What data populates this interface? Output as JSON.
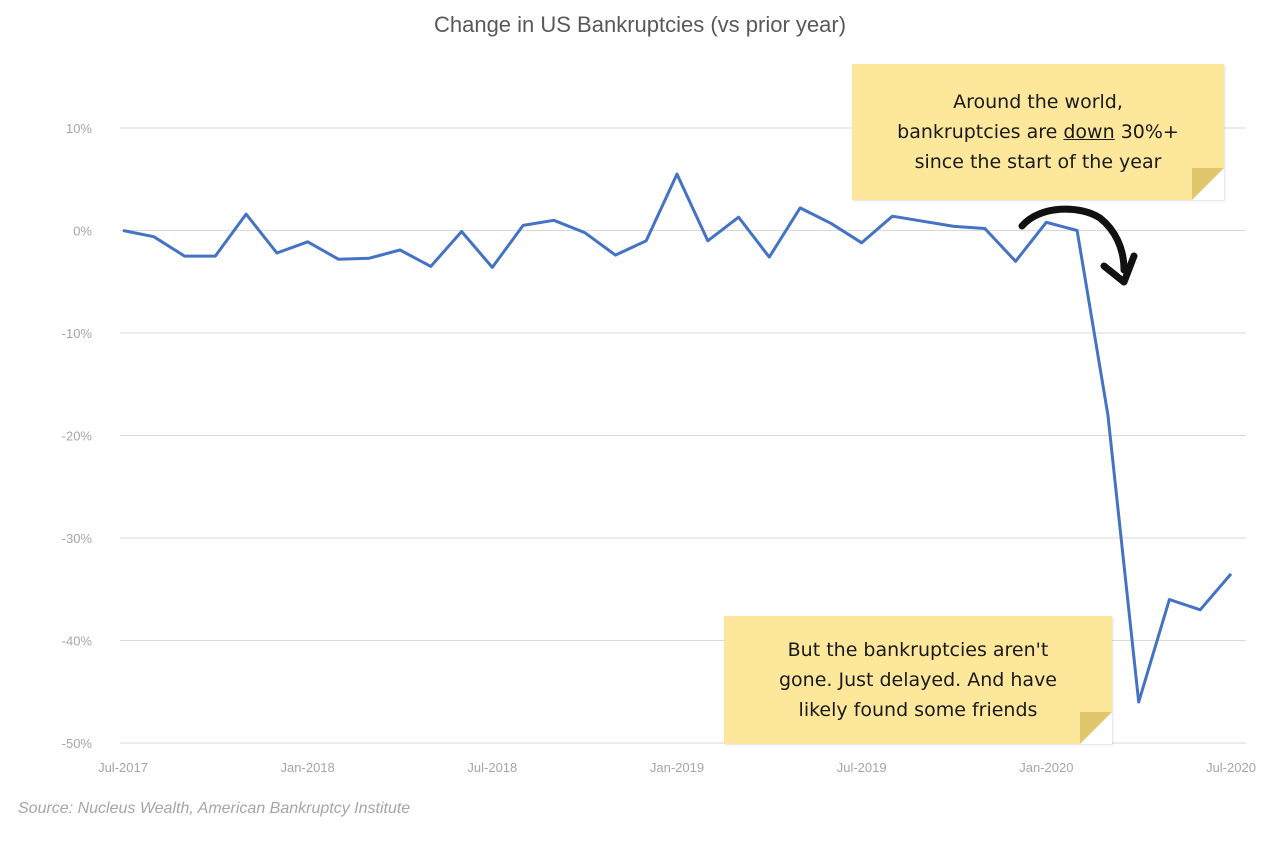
{
  "chart_data": {
    "type": "line",
    "title": "Change in US Bankruptcies (vs prior year)",
    "xlabel": "",
    "ylabel": "",
    "ylim": [
      -50,
      10
    ],
    "y_ticks": [
      "10%",
      "0%",
      "-10%",
      "-20%",
      "-30%",
      "-40%",
      "-50%"
    ],
    "x_ticks": [
      "Jul-2017",
      "Jan-2018",
      "Jul-2018",
      "Jan-2019",
      "Jul-2019",
      "Jan-2020",
      "Jul-2020"
    ],
    "grid": true,
    "line_color": "#4472c4",
    "x": [
      "Jul-2017",
      "Aug-2017",
      "Sep-2017",
      "Oct-2017",
      "Nov-2017",
      "Dec-2017",
      "Jan-2018",
      "Feb-2018",
      "Mar-2018",
      "Apr-2018",
      "May-2018",
      "Jun-2018",
      "Jul-2018",
      "Aug-2018",
      "Sep-2018",
      "Oct-2018",
      "Nov-2018",
      "Dec-2018",
      "Jan-2019",
      "Feb-2019",
      "Mar-2019",
      "Apr-2019",
      "May-2019",
      "Jun-2019",
      "Jul-2019",
      "Aug-2019",
      "Sep-2019",
      "Oct-2019",
      "Nov-2019",
      "Dec-2019",
      "Jan-2020",
      "Feb-2020",
      "Mar-2020",
      "Apr-2020",
      "May-2020",
      "Jun-2020",
      "Jul-2020"
    ],
    "series": [
      {
        "values": [
          0.0,
          -0.6,
          -2.5,
          -2.5,
          1.6,
          -2.2,
          -1.1,
          -2.8,
          -2.7,
          -1.9,
          -3.5,
          -0.1,
          -3.6,
          0.5,
          1.0,
          -0.2,
          -2.4,
          -1.0,
          5.5,
          -1.0,
          1.3,
          -2.6,
          2.2,
          0.7,
          -1.2,
          1.4,
          0.9,
          0.4,
          0.2,
          -3.0,
          0.8,
          0.0,
          -18.0,
          -46.0,
          -36.0,
          -37.0,
          -33.5
        ]
      }
    ]
  },
  "annotations": {
    "top": {
      "line1": "Around the world,",
      "line2_pre": "bankruptcies are ",
      "line2_emph": "down",
      "line2_post": " 30%+",
      "line3": "since the start of the year"
    },
    "bottom": {
      "line1": "But the bankruptcies aren't",
      "line2": "gone. Just delayed. And have",
      "line3": "likely found some friends"
    }
  },
  "source": "Source: Nucleus Wealth, American Bankruptcy Institute"
}
